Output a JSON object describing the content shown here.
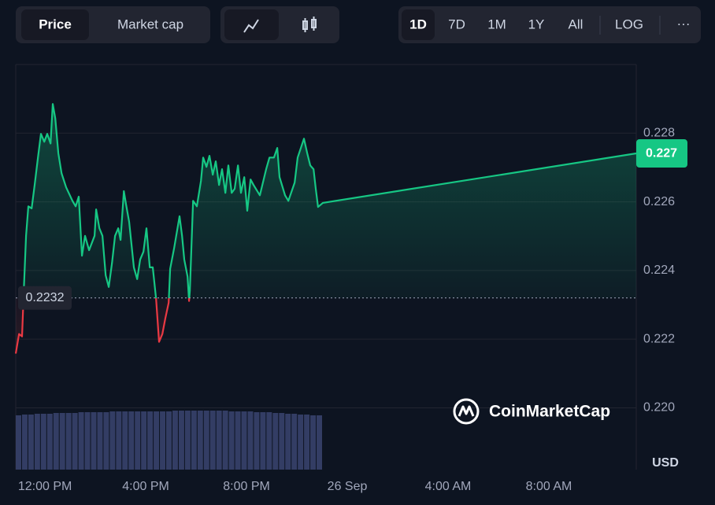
{
  "controls": {
    "price": "Price",
    "market_cap": "Market cap",
    "ranges": [
      "1D",
      "7D",
      "1M",
      "1Y",
      "All"
    ],
    "log": "LOG",
    "more": "···"
  },
  "chart_data": {
    "type": "line",
    "currency": "USD",
    "watermark": "CoinMarketCap",
    "x": [
      10.84,
      10.97,
      11.09,
      11.16,
      11.25,
      11.34,
      11.47,
      11.59,
      11.72,
      11.84,
      11.97,
      12.09,
      12.22,
      12.31,
      12.41,
      12.53,
      12.66,
      12.84,
      13.09,
      13.22,
      13.34,
      13.47,
      13.59,
      13.75,
      13.97,
      14.03,
      14.16,
      14.28,
      14.41,
      14.53,
      14.66,
      14.78,
      14.91,
      15.0,
      15.13,
      15.22,
      15.34,
      15.53,
      15.66,
      15.78,
      15.91,
      16.03,
      16.16,
      16.28,
      16.41,
      16.53,
      16.66,
      16.78,
      16.91,
      16.97,
      17.13,
      17.34,
      17.44,
      17.53,
      17.66,
      17.72,
      17.75,
      17.88,
      18.03,
      18.19,
      18.28,
      18.41,
      18.53,
      18.66,
      18.78,
      18.91,
      19.03,
      19.16,
      19.28,
      19.41,
      19.53,
      19.66,
      19.78,
      19.91,
      20.03,
      20.16,
      20.28,
      20.53,
      20.78,
      20.91,
      21.09,
      21.22,
      21.31,
      21.53,
      21.66,
      21.91,
      22.03,
      22.28,
      22.41,
      22.53,
      22.66,
      22.75,
      22.84,
      23.03,
      35.47
    ],
    "series": [
      {
        "name": "Price",
        "color": "#16c784",
        "below_color": "#ea3943",
        "values": [
          0.22158,
          0.22215,
          0.22208,
          0.22341,
          0.22501,
          0.22587,
          0.22581,
          0.22649,
          0.22729,
          0.22798,
          0.22775,
          0.22798,
          0.2277,
          0.22885,
          0.22843,
          0.22741,
          0.22683,
          0.22642,
          0.22603,
          0.22587,
          0.22615,
          0.22443,
          0.22501,
          0.22459,
          0.22501,
          0.22578,
          0.22523,
          0.22501,
          0.22386,
          0.22352,
          0.22421,
          0.22501,
          0.22523,
          0.22489,
          0.22631,
          0.22592,
          0.22542,
          0.22409,
          0.22375,
          0.22432,
          0.22455,
          0.22523,
          0.22409,
          0.22409,
          0.22318,
          0.22192,
          0.22215,
          0.22261,
          0.22306,
          0.22405,
          0.22466,
          0.22558,
          0.22501,
          0.22432,
          0.22382,
          0.22311,
          0.22341,
          0.22603,
          0.22587,
          0.22661,
          0.22729,
          0.22702,
          0.22734,
          0.22679,
          0.22718,
          0.22649,
          0.22695,
          0.22626,
          0.22706,
          0.22626,
          0.22638,
          0.22706,
          0.22626,
          0.22672,
          0.22574,
          0.22665,
          0.22649,
          0.22619,
          0.22695,
          0.22729,
          0.22729,
          0.22757,
          0.22672,
          0.22619,
          0.22603,
          0.22656,
          0.22729,
          0.22784,
          0.22741,
          0.22706,
          0.22695,
          0.22638,
          0.22585,
          0.22597,
          0.22741
        ]
      }
    ],
    "baseline": 0.2232,
    "current_price": 0.227,
    "volume": {
      "color": "#3b4470",
      "values": [
        69,
        70,
        70,
        71,
        71,
        71,
        72,
        72,
        72,
        72,
        73,
        73,
        73,
        73,
        73,
        74,
        74,
        74,
        74,
        74,
        74,
        74,
        74,
        74,
        74,
        75,
        75,
        75,
        75,
        75,
        75,
        75,
        75,
        75,
        74,
        74,
        74,
        74,
        73,
        73,
        73,
        72,
        72,
        71,
        71,
        70,
        70,
        69,
        69
      ]
    },
    "xlim": [
      10.84,
      35.47
    ],
    "xticks": [
      {
        "value": 12,
        "label": "12:00 PM"
      },
      {
        "value": 16,
        "label": "4:00 PM"
      },
      {
        "value": 20,
        "label": "8:00 PM"
      },
      {
        "value": 24,
        "label": "26 Sep"
      },
      {
        "value": 28,
        "label": "4:00 AM"
      },
      {
        "value": 32,
        "label": "8:00 AM"
      }
    ],
    "ylim": [
      0.2182,
      0.23
    ],
    "yticks": [
      {
        "value": 0.22,
        "label": "0.220"
      },
      0.222,
      0.224,
      0.226,
      {
        "value": 0.228,
        "label": "0.228"
      }
    ],
    "grid": true
  }
}
